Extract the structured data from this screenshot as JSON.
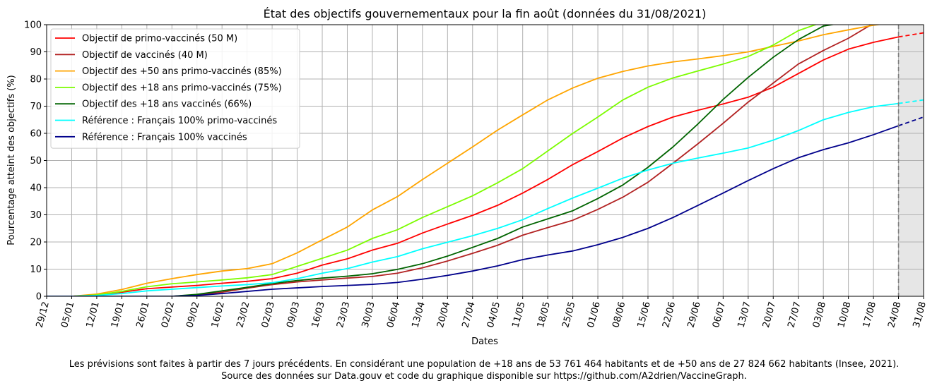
{
  "chart_data": {
    "type": "line",
    "title": "État des objectifs gouvernementaux pour la fin août (données du 31/08/2021)",
    "xlabel": "Dates",
    "ylabel": "Pourcentage atteint des objectifs (%)",
    "ylim": [
      0,
      100
    ],
    "y_ticks": [
      0,
      10,
      20,
      30,
      40,
      50,
      60,
      70,
      80,
      90,
      100
    ],
    "grid": true,
    "legend_position": "top-left",
    "x_tick_labels": [
      "29/12",
      "05/01",
      "12/01",
      "19/01",
      "26/01",
      "02/02",
      "09/02",
      "16/02",
      "23/02",
      "02/03",
      "09/03",
      "16/03",
      "23/03",
      "30/03",
      "06/04",
      "13/04",
      "20/04",
      "27/04",
      "04/05",
      "11/05",
      "18/05",
      "25/05",
      "01/06",
      "08/06",
      "15/06",
      "22/06",
      "29/06",
      "06/07",
      "13/07",
      "20/07",
      "27/07",
      "03/08",
      "10/08",
      "17/08",
      "24/08",
      "31/08"
    ],
    "forecast_start_tick": "24/08",
    "forecast_region": [
      "24/08",
      "31/08"
    ],
    "series": [
      {
        "name": "Objectif de primo-vaccinés (50 M)",
        "color": "#ff0000",
        "values": [
          0,
          0,
          0.5,
          1.5,
          2.8,
          3.4,
          4,
          4.8,
          5.5,
          6.5,
          8.5,
          11.5,
          13.8,
          17,
          19.5,
          23.3,
          26.6,
          29.8,
          33.5,
          38,
          43,
          48.5,
          53.3,
          58.3,
          62.5,
          66,
          68.5,
          70.8,
          73.3,
          77,
          82,
          87,
          91,
          93.5,
          95.5,
          97
        ]
      },
      {
        "name": "Objectif de vaccinés (40 M)",
        "color": "#b22222",
        "values": [
          0,
          0,
          0,
          0,
          0,
          0,
          0.5,
          1.5,
          3,
          4.3,
          5.3,
          6,
          6.7,
          7.3,
          8.5,
          10.5,
          13,
          15.8,
          18.8,
          22.5,
          25.3,
          28,
          32,
          36.5,
          42,
          49,
          56.2,
          63.7,
          71.5,
          78.5,
          85.5,
          90.5,
          95,
          100.5,
          101,
          101
        ]
      },
      {
        "name": "Objectif des +50 ans primo-vaccinés (85%)",
        "color": "#ffa500",
        "values": [
          0,
          0,
          0.8,
          2.5,
          4.8,
          6.5,
          8,
          9.3,
          10.2,
          12,
          16,
          20.8,
          25.5,
          31.8,
          36.7,
          43,
          49,
          55,
          61.2,
          66.8,
          72.3,
          76.7,
          80.3,
          82.8,
          84.8,
          86.3,
          87.4,
          88.6,
          90,
          92,
          94,
          96.3,
          98.1,
          99.8,
          101,
          101
        ]
      },
      {
        "name": "Objectif des +18 ans primo-vaccinés (75%)",
        "color": "#7cfc00",
        "values": [
          0,
          0,
          0.5,
          1.8,
          3.5,
          4.6,
          5.3,
          6,
          6.8,
          8,
          11,
          14,
          17,
          21.3,
          24.5,
          29,
          33,
          37,
          41.8,
          47,
          53.5,
          60,
          66,
          72.3,
          77,
          80.4,
          83,
          85.5,
          88.3,
          92.5,
          97.8,
          101,
          101,
          101,
          101,
          101
        ]
      },
      {
        "name": "Objectif des +18 ans vaccinés (66%)",
        "color": "#006400",
        "values": [
          0,
          0,
          0,
          0,
          0,
          0,
          0.7,
          2,
          3.3,
          4.7,
          5.8,
          6.7,
          7.4,
          8.3,
          9.9,
          12,
          14.8,
          18,
          21.3,
          25.5,
          28.5,
          31.5,
          36,
          41,
          47.5,
          55,
          63.5,
          72.5,
          80.6,
          88,
          94.5,
          99.5,
          101,
          101,
          101,
          101
        ]
      },
      {
        "name": "Référence : Français 100% primo-vaccinés",
        "color": "#00ffff",
        "values": [
          0,
          0,
          0.3,
          1,
          2,
          2.6,
          3.2,
          3.8,
          4.3,
          5,
          6.5,
          8.5,
          10.2,
          12.6,
          14.6,
          17.5,
          19.9,
          22.3,
          25,
          28.2,
          32.3,
          36.2,
          39.8,
          43.5,
          46.5,
          49,
          50.9,
          52.7,
          54.6,
          57.5,
          61,
          65,
          67.7,
          69.8,
          71,
          72.3
        ]
      },
      {
        "name": "Référence : Français 100% vaccinés",
        "color": "#00008b",
        "values": [
          0,
          0,
          0,
          0,
          0,
          0,
          0.3,
          1,
          1.8,
          2.6,
          3.1,
          3.6,
          4,
          4.4,
          5.1,
          6.3,
          7.7,
          9.3,
          11.2,
          13.5,
          15.2,
          16.7,
          19,
          21.7,
          25,
          29,
          33.5,
          38,
          42.6,
          47,
          51,
          54,
          56.5,
          59.5,
          62.8,
          66
        ]
      }
    ]
  },
  "footer": {
    "line1": "Les prévisions sont faites à partir des 7 jours précédents. En considérant une population de +18 ans de 53 761 464 habitants et de +50 ans de 27 824 662 habitants (Insee, 2021).",
    "line2": "Source des données sur Data.gouv et code du graphique disponible sur https://github.com/A2drien/VaccineGraph."
  }
}
